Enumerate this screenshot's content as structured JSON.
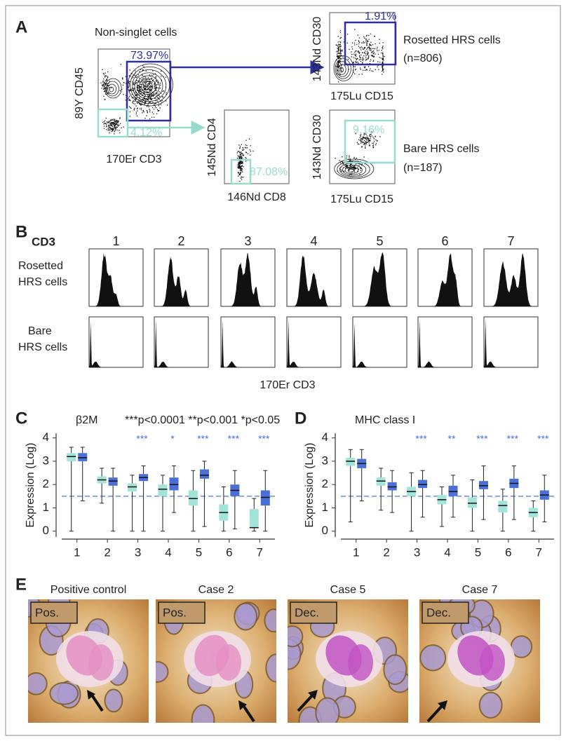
{
  "panel_a": {
    "label": "A",
    "plot_all": {
      "title": "Non-singlet cells",
      "gate_upper": "73.97%",
      "gate_lower": "4.12%",
      "y_label": "89Y CD45",
      "x_label": "170Er CD3"
    },
    "plot_rosetted": {
      "gate": "1.91%",
      "y_label": "143Nd CD30",
      "x_label": "175Lu CD15",
      "name": "Rosetted HRS cells",
      "n": "(n=806)"
    },
    "plot_cd4_cd8": {
      "gate": "87.08%",
      "y_label": "145Nd CD4",
      "x_label": "146Nd CD8"
    },
    "plot_bare": {
      "gate": "9.16%",
      "y_label": "143Nd CD30",
      "x_label": "175Lu CD15",
      "name": "Bare HRS cells",
      "n": "(n=187)"
    }
  },
  "panel_b": {
    "label": "B",
    "marker": "CD3",
    "columns": [
      "1",
      "2",
      "3",
      "4",
      "5",
      "6",
      "7"
    ],
    "row_rosetted": [
      "Rosetted",
      "HRS cells"
    ],
    "row_bare": [
      "Bare",
      "HRS cells"
    ],
    "x_label": "170Er CD3"
  },
  "chart_data": [
    {
      "type": "box",
      "panel_label": "C",
      "title": "β2M",
      "annotation": "***p<0.0001  **p<0.001 *p<0.05",
      "y_label": "Expression (Log)",
      "categories": [
        "1",
        "2",
        "3",
        "4",
        "5",
        "6",
        "7"
      ],
      "ylim": [
        -0.25,
        4.2
      ],
      "yticks": [
        0,
        1,
        2,
        3,
        4
      ],
      "reference_line": 1.5,
      "significance": [
        null,
        null,
        "***",
        "*",
        "***",
        "***",
        "***"
      ],
      "significance_color": "#4a6fd6",
      "series": [
        {
          "color": "#a3e4d8",
          "min": [
            0,
            1.2,
            0,
            0,
            0,
            0,
            0
          ],
          "q1": [
            3.0,
            2.05,
            1.7,
            1.5,
            1.1,
            0.45,
            0.15
          ],
          "median": [
            3.2,
            2.2,
            1.9,
            1.8,
            1.4,
            0.8,
            0.15
          ],
          "q3": [
            3.35,
            2.35,
            2.05,
            2.0,
            1.75,
            1.15,
            0.95
          ],
          "max": [
            3.6,
            2.7,
            2.4,
            2.4,
            2.6,
            1.9,
            1.4
          ]
        },
        {
          "color": "#4a6fd6",
          "min": [
            1.3,
            0,
            0,
            0.8,
            0.2,
            0.1,
            0
          ],
          "q1": [
            3.0,
            1.95,
            2.15,
            1.75,
            2.25,
            1.5,
            1.1
          ],
          "median": [
            3.15,
            2.15,
            2.3,
            2.0,
            2.4,
            1.75,
            1.45
          ],
          "q3": [
            3.35,
            2.3,
            2.45,
            2.3,
            2.65,
            2.0,
            1.75
          ],
          "max": [
            3.6,
            2.7,
            2.8,
            2.8,
            3.0,
            2.6,
            2.6
          ]
        }
      ]
    },
    {
      "type": "box",
      "panel_label": "D",
      "title": "MHC class I",
      "y_label": "Expression (Log)",
      "categories": [
        "1",
        "2",
        "3",
        "4",
        "5",
        "6",
        "7"
      ],
      "ylim": [
        -0.25,
        4.2
      ],
      "yticks": [
        0,
        1,
        2,
        3,
        4
      ],
      "reference_line": 1.5,
      "significance": [
        null,
        null,
        "***",
        "**",
        "***",
        "***",
        "***"
      ],
      "significance_color": "#4a6fd6",
      "series": [
        {
          "color": "#a3e4d8",
          "min": [
            0.4,
            0.9,
            0,
            0.2,
            0,
            0,
            0
          ],
          "q1": [
            2.8,
            1.95,
            1.5,
            1.15,
            1.0,
            0.8,
            0.6
          ],
          "median": [
            3.0,
            2.15,
            1.7,
            1.35,
            1.2,
            1.1,
            0.8
          ],
          "q3": [
            3.15,
            2.3,
            1.9,
            1.55,
            1.45,
            1.3,
            1.0
          ],
          "max": [
            3.5,
            2.7,
            2.5,
            1.9,
            2.2,
            1.8,
            1.3
          ]
        },
        {
          "color": "#4a6fd6",
          "min": [
            1.3,
            0.8,
            0.6,
            0.6,
            0.5,
            0.5,
            0.4
          ],
          "q1": [
            2.7,
            1.75,
            1.85,
            1.5,
            1.8,
            1.85,
            1.35
          ],
          "median": [
            2.9,
            1.9,
            2.0,
            1.7,
            1.95,
            2.05,
            1.55
          ],
          "q3": [
            3.1,
            2.1,
            2.2,
            1.95,
            2.15,
            2.25,
            1.75
          ],
          "max": [
            3.5,
            2.6,
            2.6,
            2.4,
            2.8,
            2.8,
            2.4
          ]
        }
      ]
    }
  ],
  "panel_e": {
    "label": "E",
    "images": [
      {
        "title": "Positive control",
        "tag": "Pos."
      },
      {
        "title": "Case 2",
        "tag": "Pos."
      },
      {
        "title": "Case 5",
        "tag": "Dec."
      },
      {
        "title": "Case 7",
        "tag": "Dec."
      }
    ]
  }
}
